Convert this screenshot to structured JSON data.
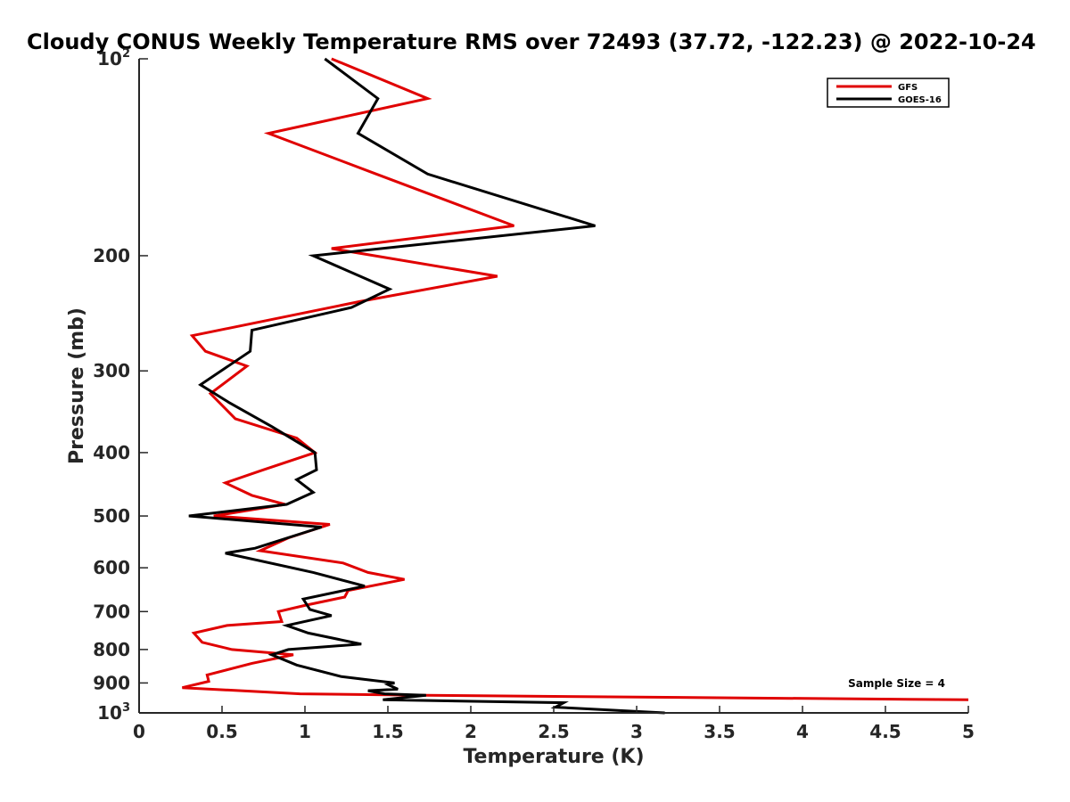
{
  "chart_data": {
    "type": "line",
    "title": "Cloudy CONUS Weekly Temperature RMS over 72493 (37.72, -122.23) @ 2022-10-24",
    "xlabel": "Temperature (K)",
    "ylabel": "Pressure (mb)",
    "xlim": [
      0,
      5
    ],
    "ylim": [
      100,
      1000
    ],
    "y_scale": "log",
    "y_reversed": true,
    "grid": false,
    "legend_position": "top-right",
    "xticks": [
      0,
      0.5,
      1,
      1.5,
      2,
      2.5,
      3,
      3.5,
      4,
      4.5,
      5
    ],
    "xtick_labels": [
      "0",
      "0.5",
      "1",
      "1.5",
      "2",
      "2.5",
      "3",
      "3.5",
      "4",
      "4.5",
      "5"
    ],
    "yticks": [
      100,
      200,
      300,
      400,
      500,
      600,
      700,
      800,
      900,
      1000
    ],
    "ytick_labels": [
      {
        "base": "10",
        "exp": "2"
      },
      {
        "base": "200",
        "exp": ""
      },
      {
        "base": "300",
        "exp": ""
      },
      {
        "base": "400",
        "exp": ""
      },
      {
        "base": "500",
        "exp": ""
      },
      {
        "base": "600",
        "exp": ""
      },
      {
        "base": "700",
        "exp": ""
      },
      {
        "base": "800",
        "exp": ""
      },
      {
        "base": "900",
        "exp": ""
      },
      {
        "base": "10",
        "exp": "3"
      }
    ],
    "annotation": "Sample Size = 4",
    "series": [
      {
        "name": "GFS",
        "color": "#e00000",
        "points": [
          [
            1.16,
            100
          ],
          [
            1.74,
            115
          ],
          [
            0.78,
            130
          ],
          [
            1.43,
            150
          ],
          [
            2.26,
            180
          ],
          [
            1.16,
            195
          ],
          [
            2.16,
            215
          ],
          [
            1.33,
            235
          ],
          [
            0.32,
            265
          ],
          [
            0.4,
            280
          ],
          [
            0.65,
            295
          ],
          [
            0.43,
            325
          ],
          [
            0.58,
            355
          ],
          [
            0.95,
            380
          ],
          [
            1.06,
            400
          ],
          [
            0.75,
            425
          ],
          [
            0.52,
            445
          ],
          [
            0.68,
            465
          ],
          [
            0.88,
            480
          ],
          [
            0.45,
            500
          ],
          [
            1.15,
            515
          ],
          [
            0.9,
            540
          ],
          [
            0.73,
            565
          ],
          [
            1.23,
            590
          ],
          [
            1.38,
            610
          ],
          [
            1.6,
            625
          ],
          [
            1.26,
            650
          ],
          [
            1.24,
            665
          ],
          [
            1.0,
            685
          ],
          [
            0.84,
            700
          ],
          [
            0.86,
            725
          ],
          [
            0.53,
            735
          ],
          [
            0.33,
            755
          ],
          [
            0.38,
            780
          ],
          [
            0.56,
            800
          ],
          [
            0.93,
            815
          ],
          [
            0.68,
            840
          ],
          [
            0.41,
            875
          ],
          [
            0.42,
            895
          ],
          [
            0.26,
            915
          ],
          [
            0.97,
            935
          ],
          [
            1.73,
            940
          ],
          [
            5.0,
            955
          ]
        ]
      },
      {
        "name": "GOES-16",
        "color": "#000000",
        "points": [
          [
            1.12,
            100
          ],
          [
            1.44,
            115
          ],
          [
            1.32,
            130
          ],
          [
            1.74,
            150
          ],
          [
            2.75,
            180
          ],
          [
            1.05,
            200
          ],
          [
            1.51,
            225
          ],
          [
            1.28,
            240
          ],
          [
            0.68,
            260
          ],
          [
            0.67,
            280
          ],
          [
            0.37,
            315
          ],
          [
            0.54,
            335
          ],
          [
            0.8,
            365
          ],
          [
            1.06,
            400
          ],
          [
            1.07,
            425
          ],
          [
            0.95,
            440
          ],
          [
            1.05,
            460
          ],
          [
            0.89,
            480
          ],
          [
            0.3,
            500
          ],
          [
            1.1,
            520
          ],
          [
            0.7,
            560
          ],
          [
            0.52,
            570
          ],
          [
            1.05,
            610
          ],
          [
            1.36,
            640
          ],
          [
            0.99,
            670
          ],
          [
            1.03,
            695
          ],
          [
            1.16,
            710
          ],
          [
            0.89,
            735
          ],
          [
            1.02,
            755
          ],
          [
            1.34,
            785
          ],
          [
            0.9,
            800
          ],
          [
            0.8,
            815
          ],
          [
            0.95,
            845
          ],
          [
            1.22,
            880
          ],
          [
            1.54,
            900
          ],
          [
            1.5,
            905
          ],
          [
            1.56,
            920
          ],
          [
            1.38,
            925
          ],
          [
            1.48,
            935
          ],
          [
            1.73,
            940
          ],
          [
            1.47,
            955
          ],
          [
            2.56,
            965
          ],
          [
            2.51,
            980
          ],
          [
            3.17,
            1000
          ]
        ]
      }
    ]
  }
}
